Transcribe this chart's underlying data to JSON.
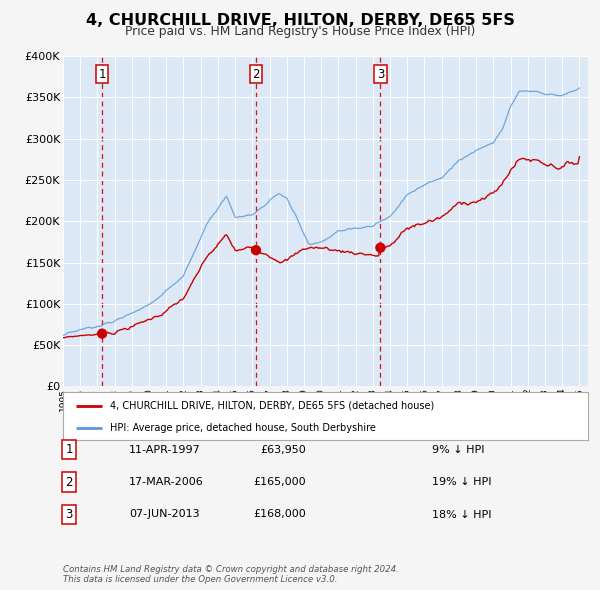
{
  "title": "4, CHURCHILL DRIVE, HILTON, DERBY, DE65 5FS",
  "subtitle": "Price paid vs. HM Land Registry's House Price Index (HPI)",
  "background_color": "#f5f5f5",
  "plot_bg_color": "#dce8f5",
  "hpi_color": "#5b9bd5",
  "price_color": "#cc0000",
  "dot_color": "#cc0000",
  "vline_color": "#cc0000",
  "grid_color": "#ffffff",
  "ylim": [
    0,
    400000
  ],
  "yticks": [
    0,
    50000,
    100000,
    150000,
    200000,
    250000,
    300000,
    350000,
    400000
  ],
  "legend_red_label": "4, CHURCHILL DRIVE, HILTON, DERBY, DE65 5FS (detached house)",
  "legend_blue_label": "HPI: Average price, detached house, South Derbyshire",
  "sale_points": [
    {
      "label": "1",
      "date": "11-APR-1997",
      "price": 63950,
      "pct": "9% ↓ HPI",
      "year": 1997.27
    },
    {
      "label": "2",
      "date": "17-MAR-2006",
      "price": 165000,
      "pct": "19% ↓ HPI",
      "year": 2006.21
    },
    {
      "label": "3",
      "date": "07-JUN-2013",
      "price": 168000,
      "pct": "18% ↓ HPI",
      "year": 2013.44
    }
  ],
  "footer": "Contains HM Land Registry data © Crown copyright and database right 2024.\nThis data is licensed under the Open Government Licence v3.0."
}
